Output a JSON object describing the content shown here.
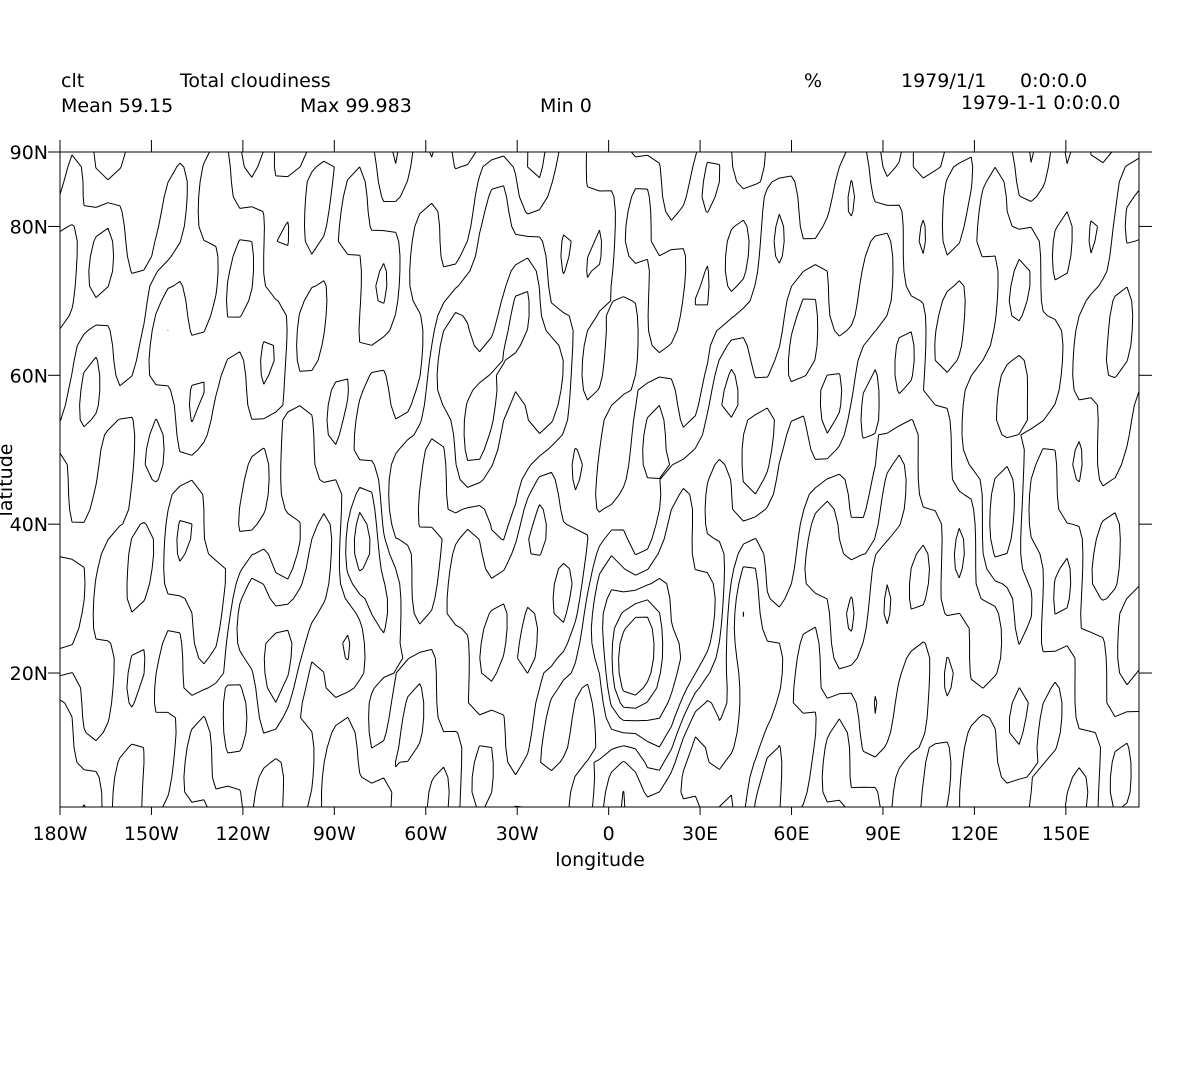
{
  "header": {
    "variable": "clt",
    "long_name": "Total cloudiness",
    "units": "%",
    "date": "1979/1/1",
    "time": "0:0:0.0",
    "datetime": "1979-1-1 0:0:0.0",
    "mean": "Mean 59.15",
    "max": "Max 99.983",
    "min": "Min 0"
  },
  "chart_data": {
    "type": "contour",
    "xlabel": "longitude",
    "ylabel": "latitude",
    "xlim": [
      -180,
      174
    ],
    "ylim": [
      2,
      90
    ],
    "x_ticks": [
      {
        "value": -180,
        "label": "180W"
      },
      {
        "value": -150,
        "label": "150W"
      },
      {
        "value": -120,
        "label": "120W"
      },
      {
        "value": -90,
        "label": "90W"
      },
      {
        "value": -60,
        "label": "60W"
      },
      {
        "value": -30,
        "label": "30W"
      },
      {
        "value": 0,
        "label": "0"
      },
      {
        "value": 30,
        "label": "30E"
      },
      {
        "value": 60,
        "label": "60E"
      },
      {
        "value": 90,
        "label": "90E"
      },
      {
        "value": 120,
        "label": "120E"
      },
      {
        "value": 150,
        "label": "150E"
      }
    ],
    "y_ticks": [
      {
        "value": 20,
        "label": "20N"
      },
      {
        "value": 40,
        "label": "40N"
      },
      {
        "value": 60,
        "label": "60N"
      },
      {
        "value": 80,
        "label": "80N"
      },
      {
        "value": 90,
        "label": "90N"
      }
    ],
    "statistics": {
      "mean": 59.15,
      "max": 99.983,
      "min": 0
    },
    "grid": false,
    "coastlines": true
  }
}
